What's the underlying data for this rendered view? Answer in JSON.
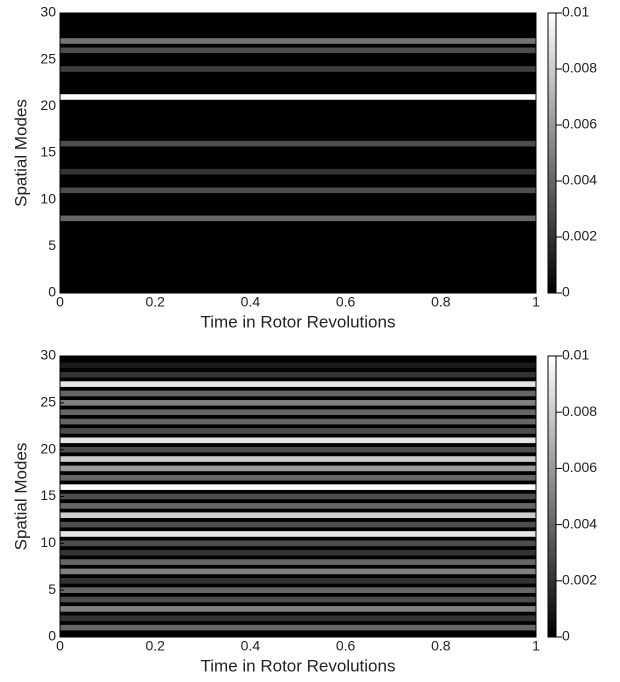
{
  "chart_data": [
    {
      "type": "heatmap",
      "xlabel": "Time in Rotor Revolutions",
      "ylabel": "Spatial Modes",
      "xlim": [
        0,
        1
      ],
      "xticks": [
        0,
        0.2,
        0.4,
        0.6,
        0.8,
        1
      ],
      "ylim": [
        0,
        30
      ],
      "yticks": [
        0,
        5,
        10,
        15,
        20,
        25,
        30
      ],
      "y": [
        8,
        11,
        13,
        16,
        21,
        24,
        26,
        27
      ],
      "values": [
        0.004,
        0.003,
        0.002,
        0.003,
        0.01,
        0.0025,
        0.003,
        0.0045
      ],
      "zlim": [
        0,
        0.01
      ],
      "zticks": [
        0,
        0.002,
        0.004,
        0.006,
        0.008,
        0.01
      ]
    },
    {
      "type": "heatmap",
      "xlabel": "Time in Rotor Revolutions",
      "ylabel": "Spatial Modes",
      "xlim": [
        0,
        1
      ],
      "xticks": [
        0,
        0.2,
        0.4,
        0.6,
        0.8,
        1
      ],
      "ylim": [
        0,
        30
      ],
      "yticks": [
        0,
        5,
        10,
        15,
        20,
        25,
        30
      ],
      "y": [
        1,
        2,
        3,
        4,
        5,
        6,
        7,
        8,
        9,
        10,
        11,
        12,
        13,
        14,
        15,
        16,
        17,
        18,
        19,
        20,
        21,
        22,
        23,
        24,
        25,
        26,
        27,
        28,
        29
      ],
      "values": [
        0.004,
        0.002,
        0.005,
        0.003,
        0.004,
        0.002,
        0.005,
        0.004,
        0.002,
        0.003,
        0.009,
        0.003,
        0.008,
        0.004,
        0.003,
        0.01,
        0.004,
        0.006,
        0.008,
        0.003,
        0.009,
        0.003,
        0.004,
        0.004,
        0.005,
        0.004,
        0.009,
        0.002,
        0.001
      ],
      "zlim": [
        0,
        0.01
      ],
      "zticks": [
        0,
        0.002,
        0.004,
        0.006,
        0.008,
        0.01
      ]
    }
  ]
}
